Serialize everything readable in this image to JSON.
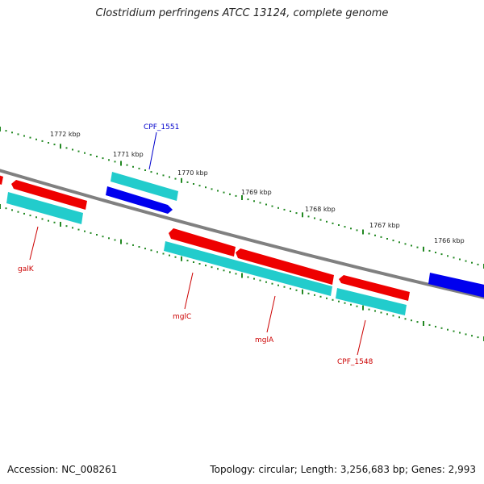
{
  "title": "Clostridium perfringens ATCC 13124, complete genome",
  "footer": {
    "accession": "Accession: NC_008261",
    "topology": "Topology: circular; Length: 3,256,683 bp; Genes: 2,993"
  },
  "colors": {
    "backbone": "#808080",
    "forward_cds": "#ee0000",
    "gene": "#22cccc",
    "reverse_cds": "#0000ee",
    "tick": "#228822",
    "label_red": "#cc0000",
    "label_blue": "#0000cc"
  },
  "scale": {
    "labels": [
      {
        "text": "1772 kbp"
      },
      {
        "text": "1771 kbp"
      },
      {
        "text": "1770 kbp"
      },
      {
        "text": "1769 kbp"
      },
      {
        "text": "1768 kbp"
      },
      {
        "text": "1767 kbp"
      },
      {
        "text": "1766 kbp"
      }
    ]
  },
  "gene_labels": [
    {
      "text": "CPF_1551",
      "color": "blue"
    },
    {
      "text": "galK",
      "color": "red"
    },
    {
      "text": "mglC",
      "color": "red"
    },
    {
      "text": "mglA",
      "color": "red"
    },
    {
      "text": "CPF_1548",
      "color": "red"
    }
  ]
}
